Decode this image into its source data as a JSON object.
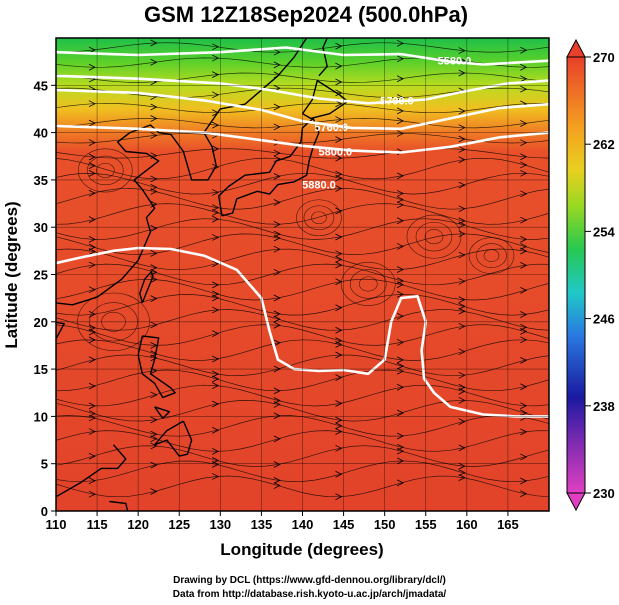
{
  "colors": {
    "high": "#e04a2a",
    "mid": "#f07a25",
    "green": "#2fc02a",
    "contour": "#ffffff",
    "coast": "#000000"
  },
  "chart_data": {
    "type": "heatmap",
    "title": "GSM 12Z18Sep2024 (500.0hPa)",
    "xlabel": "Longitude (degrees)",
    "ylabel": "Latitude  (degrees)",
    "xlim": [
      110,
      170
    ],
    "ylim": [
      0,
      50
    ],
    "x_ticks": [
      "110",
      "115",
      "120",
      "125",
      "130",
      "135",
      "140",
      "145",
      "150",
      "155",
      "160",
      "165"
    ],
    "y_ticks": [
      "0",
      "5",
      "10",
      "15",
      "20",
      "25",
      "30",
      "35",
      "40",
      "45"
    ],
    "grid": true,
    "colorbar": {
      "min": 230,
      "max": 270,
      "tick_labels": [
        "230",
        "238",
        "246",
        "254",
        "262",
        "270"
      ],
      "colors": [
        "#e040c0",
        "#1a1aa0",
        "#2a78e0",
        "#20c8c8",
        "#30c030",
        "#d8d820",
        "#f4a020",
        "#e8402a"
      ]
    },
    "contour_labels": [
      "5580.0",
      "5700.0",
      "5760.0",
      "5800.0",
      "5880.0"
    ],
    "contours": [
      {
        "value": 5580,
        "label_lon": 158.5,
        "label_lat": 47.6,
        "points": [
          [
            110,
            48.5
          ],
          [
            120,
            48.2
          ],
          [
            130,
            48.5
          ],
          [
            138,
            49
          ],
          [
            145,
            48.2
          ],
          [
            152,
            48.3
          ],
          [
            158,
            47.5
          ],
          [
            162,
            47.2
          ],
          [
            170,
            47.6
          ]
        ]
      },
      {
        "value": 5700,
        "label_lon": 151.5,
        "label_lat": 43.4,
        "points": [
          [
            110,
            46
          ],
          [
            120,
            45.7
          ],
          [
            130,
            45.2
          ],
          [
            136,
            44.5
          ],
          [
            142,
            43.6
          ],
          [
            148,
            43.1
          ],
          [
            155,
            43.5
          ],
          [
            160,
            44.4
          ],
          [
            165,
            45.2
          ],
          [
            170,
            45.5
          ]
        ]
      },
      {
        "value": 5760,
        "label_lon": 143.5,
        "label_lat": 40.6,
        "points": [
          [
            110,
            44.5
          ],
          [
            120,
            44.2
          ],
          [
            128,
            43.4
          ],
          [
            135,
            42.4
          ],
          [
            140,
            41.2
          ],
          [
            146,
            40.5
          ],
          [
            152,
            40.4
          ],
          [
            158,
            41.5
          ],
          [
            164,
            42.6
          ],
          [
            170,
            43
          ]
        ]
      },
      {
        "value": 5800,
        "label_lon": 144,
        "label_lat": 38,
        "points": [
          [
            110,
            40.7
          ],
          [
            120,
            40.4
          ],
          [
            128,
            40
          ],
          [
            135,
            39.2
          ],
          [
            140,
            38.6
          ],
          [
            146,
            38.1
          ],
          [
            152,
            37.9
          ],
          [
            158,
            38.5
          ],
          [
            164,
            39.5
          ],
          [
            170,
            40
          ]
        ]
      },
      {
        "value": 5880,
        "label_lon": 142,
        "label_lat": 34.5,
        "points": [
          [
            110,
            26.2
          ],
          [
            113,
            26.8
          ],
          [
            117,
            27.5
          ],
          [
            120,
            27.8
          ],
          [
            124,
            27.7
          ],
          [
            128,
            27
          ],
          [
            132,
            25.5
          ],
          [
            135,
            22.5
          ],
          [
            136,
            19
          ],
          [
            137,
            16
          ],
          [
            139,
            15
          ],
          [
            142,
            14.8
          ],
          [
            145,
            14.9
          ],
          [
            148,
            14.5
          ],
          [
            150,
            16
          ],
          [
            150.8,
            20
          ],
          [
            152,
            22.5
          ],
          [
            154,
            22.7
          ],
          [
            155,
            20
          ],
          [
            154.5,
            17
          ],
          [
            154.8,
            14
          ],
          [
            156,
            12.5
          ],
          [
            158,
            11
          ],
          [
            162,
            10.2
          ],
          [
            166,
            10
          ],
          [
            170,
            10
          ]
        ]
      }
    ]
  },
  "footer": {
    "line1": "Drawing by DCL (https://www.gfd-dennou.org/library/dcl/)",
    "line2": "Data from http://database.rish.kyoto-u.ac.jp/arch/jmadata/"
  }
}
